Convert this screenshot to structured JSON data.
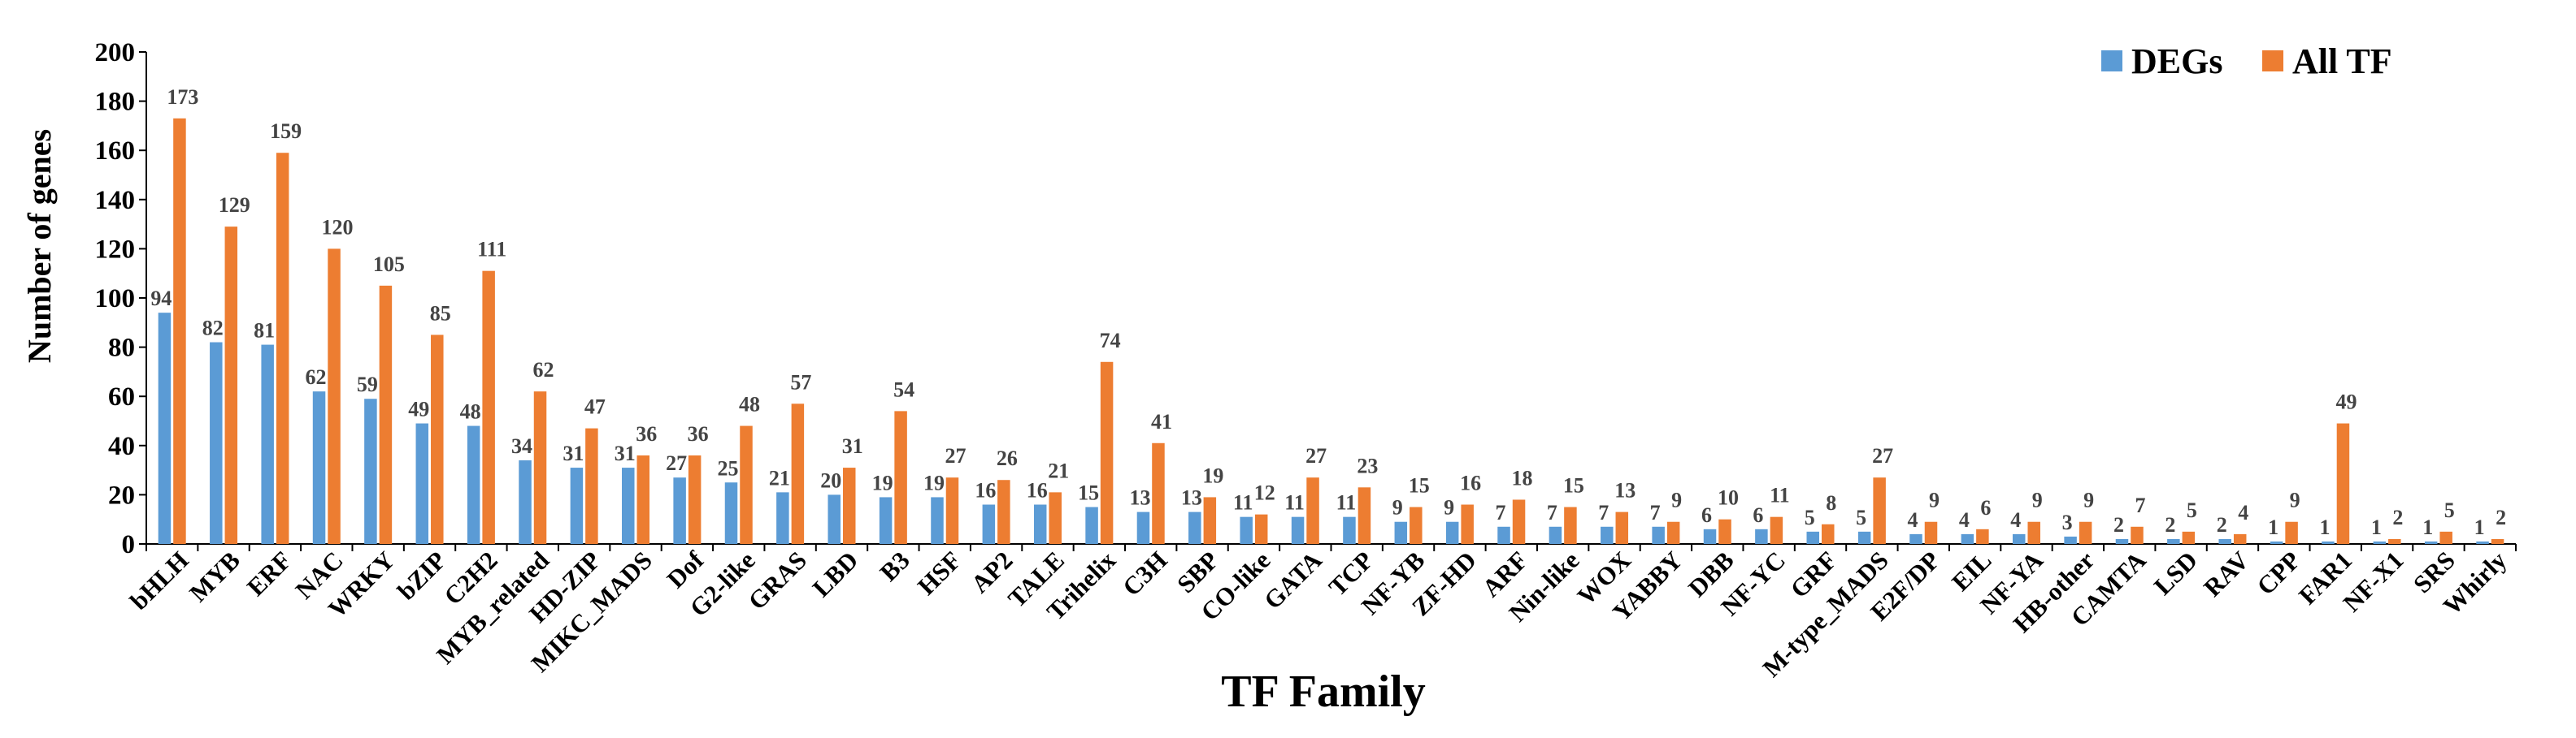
{
  "chart_data": {
    "type": "bar",
    "title": "",
    "xlabel": "TF Family",
    "ylabel": "Number of genes",
    "ylim": [
      0,
      200
    ],
    "yticks": [
      0,
      20,
      40,
      60,
      80,
      100,
      120,
      140,
      160,
      180,
      200
    ],
    "legend_position": "top-right",
    "categories": [
      "bHLH",
      "MYB",
      "ERF",
      "NAC",
      "WRKY",
      "bZIP",
      "C2H2",
      "MYB_related",
      "HD-ZIP",
      "MIKC_MADS",
      "Dof",
      "G2-like",
      "GRAS",
      "LBD",
      "B3",
      "HSF",
      "AP2",
      "TALE",
      "Trihelix",
      "C3H",
      "SBP",
      "CO-like",
      "GATA",
      "TCP",
      "NF-YB",
      "ZF-HD",
      "ARF",
      "Nin-like",
      "WOX",
      "YABBY",
      "DBB",
      "NF-YC",
      "GRF",
      "M-type_MADS",
      "E2F/DP",
      "EIL",
      "NF-YA",
      "HB-other",
      "CAMTA",
      "LSD",
      "RAV",
      "CPP",
      "FAR1",
      "NF-X1",
      "SRS",
      "Whirly"
    ],
    "series": [
      {
        "name": "DEGs",
        "color": "#5b9bd5",
        "values": [
          94,
          82,
          81,
          62,
          59,
          49,
          48,
          34,
          31,
          31,
          27,
          25,
          21,
          20,
          19,
          19,
          16,
          16,
          15,
          13,
          13,
          11,
          11,
          11,
          9,
          9,
          7,
          7,
          7,
          7,
          6,
          6,
          5,
          5,
          4,
          4,
          4,
          3,
          2,
          2,
          2,
          1,
          1,
          1,
          1,
          1
        ]
      },
      {
        "name": "All TF",
        "color": "#ed7d31",
        "values": [
          173,
          129,
          159,
          120,
          105,
          85,
          111,
          62,
          47,
          36,
          36,
          48,
          57,
          31,
          54,
          27,
          26,
          21,
          74,
          41,
          19,
          12,
          27,
          23,
          15,
          16,
          18,
          15,
          13,
          9,
          10,
          11,
          8,
          27,
          9,
          6,
          9,
          9,
          7,
          5,
          4,
          9,
          49,
          2,
          5,
          2
        ]
      }
    ]
  }
}
